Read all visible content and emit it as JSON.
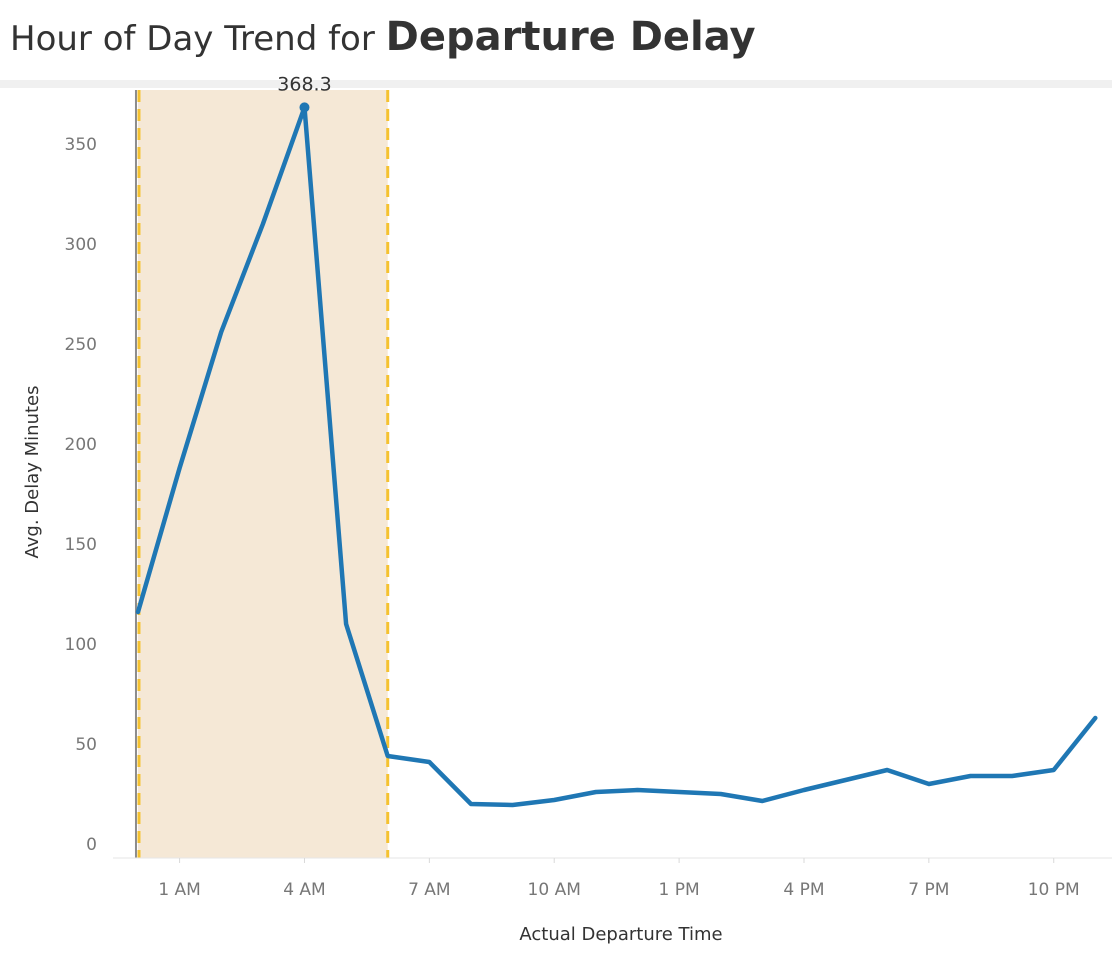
{
  "title": {
    "prefix": "Hour of Day Trend for ",
    "main": "Departure Delay"
  },
  "chart_data": {
    "type": "line",
    "title": "Hour of Day Trend for Departure Delay",
    "xlabel": "Actual Departure Time",
    "ylabel": "Avg. Delay Minutes",
    "xlim": [
      -0.6,
      23.4
    ],
    "ylim": [
      -7,
      377
    ],
    "x_ticks": [
      1,
      4,
      7,
      10,
      13,
      16,
      19,
      22
    ],
    "x_tick_labels": [
      "1 AM",
      "4 AM",
      "7 AM",
      "10 AM",
      "1 PM",
      "4 PM",
      "7 PM",
      "10 PM"
    ],
    "y_ticks": [
      0,
      50,
      100,
      150,
      200,
      250,
      300,
      350
    ],
    "y_tick_labels": [
      "0",
      "50",
      "100",
      "150",
      "200",
      "250",
      "300",
      "350"
    ],
    "grid": false,
    "series": [
      {
        "x": [
          0,
          1,
          2,
          3,
          4,
          5,
          6,
          7,
          8,
          9,
          10,
          11,
          12,
          13,
          14,
          15,
          16,
          17,
          18,
          19,
          20,
          21,
          22,
          23
        ],
        "values": [
          116,
          188,
          256,
          310,
          368.3,
          110,
          44,
          41,
          20,
          19.5,
          22,
          26,
          27,
          26,
          25,
          21.5,
          27,
          32,
          37,
          30,
          34,
          34,
          37,
          63
        ],
        "color": "#1f77b4"
      }
    ],
    "highlight": {
      "x_start": 0,
      "x_end": 6,
      "fill": "#f5e8d6",
      "border_color": "#f5c230"
    },
    "annotations": [
      {
        "x": 4,
        "y": 368.3,
        "text": "368.3"
      }
    ]
  }
}
